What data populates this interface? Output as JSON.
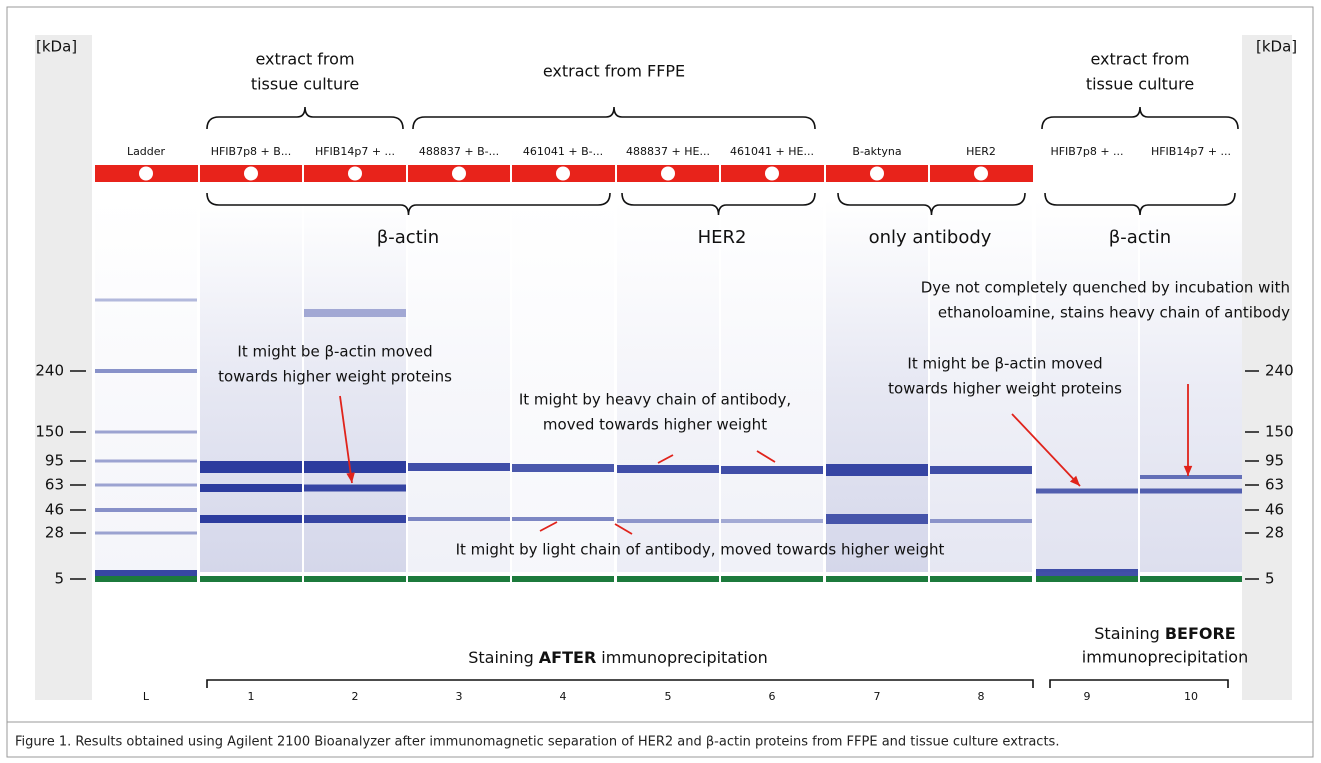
{
  "axis_label_left": "[kDa]",
  "axis_label_right": "[kDa]",
  "ticks": [
    "240",
    "150",
    "95",
    "63",
    "46",
    "28",
    "5"
  ],
  "lanes": [
    {
      "name": "Ladder",
      "number": "L"
    },
    {
      "name": "HFIB7p8 + B...",
      "number": "1"
    },
    {
      "name": "HFIB14p7 + ...",
      "number": "2"
    },
    {
      "name": "488837 + B-...",
      "number": "3"
    },
    {
      "name": "461041 + B-...",
      "number": "4"
    },
    {
      "name": "488837 + HE...",
      "number": "5"
    },
    {
      "name": "461041 + HE...",
      "number": "6"
    },
    {
      "name": "B-aktyna",
      "number": "7"
    },
    {
      "name": "HER2",
      "number": "8"
    },
    {
      "name": "HFIB7p8  + ...",
      "number": "9"
    },
    {
      "name": "HFIB14p7 + ...",
      "number": "10"
    }
  ],
  "groups_top": [
    {
      "lines": [
        "extract from",
        "tissue culture"
      ]
    },
    {
      "lines": [
        "extract from FFPE"
      ]
    },
    {
      "lines": [
        "extract from",
        "tissue culture"
      ]
    }
  ],
  "groups_bottom": [
    "β-actin",
    "HER2",
    "only antibody",
    "β-actin"
  ],
  "annotations": [
    {
      "lines": [
        "Dye not completely quenched by incubation with",
        "ethanoloamine, stains heavy chain of antibody"
      ]
    },
    {
      "lines": [
        "It might be β-actin moved",
        "towards higher weight proteins"
      ]
    },
    {
      "lines": [
        "It might be β-actin moved",
        "towards higher weight proteins"
      ]
    },
    {
      "lines": [
        "It might by heavy chain of antibody,",
        "moved towards higher weight"
      ]
    },
    {
      "lines": [
        "It might by light chain of antibody, moved towards higher weight"
      ]
    }
  ],
  "staining_after": {
    "prefix": "Staining",
    "bold": "AFTER",
    "suffix": "immunoprecipitation"
  },
  "staining_before": {
    "prefix": "Staining",
    "bold": "BEFORE",
    "suffix": "immunoprecipitation"
  },
  "caption": "Figure 1. Results obtained using Agilent 2100 Bioanalyzer after immunomagnetic separation of HER2 and β-actin proteins from FFPE and tissue culture extracts."
}
